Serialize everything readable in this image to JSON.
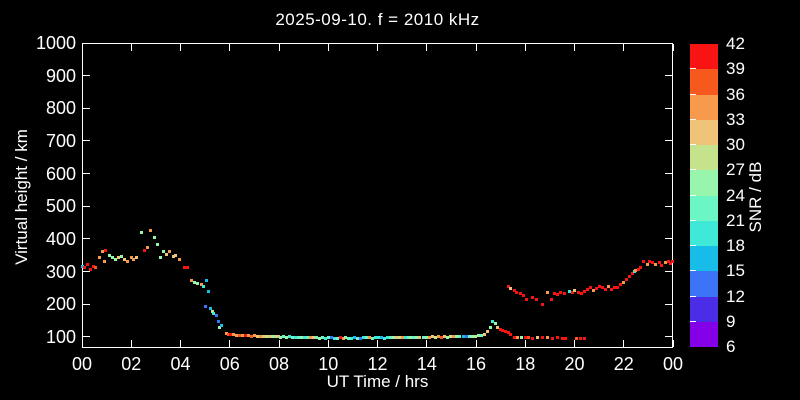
{
  "window": {
    "background": "#000000",
    "foreground": "#ffffff"
  },
  "chart_data": {
    "type": "scatter",
    "title": "2025-09-10. f = 2010 kHz",
    "xlabel": "UT Time / hrs",
    "ylabel": "Virtual height / km",
    "colorbar_label": "SNR / dB",
    "grid": false,
    "xlim": [
      0,
      24
    ],
    "ylim": [
      66,
      1000
    ],
    "x_ticks": [
      0,
      2,
      4,
      6,
      8,
      10,
      12,
      14,
      16,
      18,
      20,
      22,
      24
    ],
    "x_tick_labels": [
      "00",
      "02",
      "04",
      "06",
      "08",
      "10",
      "12",
      "14",
      "16",
      "18",
      "20",
      "22",
      "00"
    ],
    "y_ticks": [
      100,
      200,
      300,
      400,
      500,
      600,
      700,
      800,
      900,
      1000
    ],
    "y_tick_labels": [
      "100",
      "200",
      "300",
      "400",
      "500",
      "600",
      "700",
      "800",
      "900",
      "1000"
    ],
    "colorbar_ticks": [
      42,
      39,
      36,
      33,
      30,
      27,
      24,
      21,
      18,
      15,
      12,
      9,
      6
    ],
    "colormap_low_to_high": [
      "#8400e8",
      "#4b2de8",
      "#3b74f6",
      "#18bce8",
      "#3fe8d7",
      "#6cf6c6",
      "#98f5ac",
      "#c4e38c",
      "#efc478",
      "#f79a4c",
      "#f7581e",
      "#f81412"
    ],
    "colormap_bin_size": 3,
    "colormap_min": 6,
    "points_format": [
      "ut_hours",
      "virtual_height_km",
      "snr_db"
    ],
    "points": [
      [
        0.03,
        317,
        16
      ],
      [
        0.1,
        311,
        40
      ],
      [
        0.22,
        323,
        40
      ],
      [
        0.33,
        305,
        40
      ],
      [
        0.45,
        317,
        40
      ],
      [
        0.55,
        311,
        37
      ],
      [
        0.72,
        342,
        34
      ],
      [
        0.85,
        360,
        34
      ],
      [
        0.9,
        330,
        34
      ],
      [
        0.97,
        366,
        40
      ],
      [
        1.1,
        348,
        25
      ],
      [
        1.25,
        342,
        25
      ],
      [
        1.38,
        336,
        25
      ],
      [
        1.5,
        342,
        31
      ],
      [
        1.62,
        345,
        25
      ],
      [
        1.74,
        336,
        31
      ],
      [
        1.86,
        330,
        34
      ],
      [
        2.0,
        342,
        34
      ],
      [
        2.1,
        336,
        34
      ],
      [
        2.22,
        342,
        31
      ],
      [
        2.4,
        421,
        25
      ],
      [
        2.55,
        366,
        40
      ],
      [
        2.65,
        375,
        34
      ],
      [
        2.8,
        427,
        34
      ],
      [
        2.95,
        403,
        25
      ],
      [
        3.05,
        382,
        25
      ],
      [
        3.18,
        342,
        25
      ],
      [
        3.3,
        360,
        25
      ],
      [
        3.45,
        351,
        31
      ],
      [
        3.55,
        363,
        34
      ],
      [
        3.7,
        345,
        31
      ],
      [
        3.8,
        348,
        31
      ],
      [
        3.95,
        336,
        34
      ],
      [
        4.15,
        311,
        40
      ],
      [
        4.3,
        311,
        40
      ],
      [
        4.45,
        274,
        34
      ],
      [
        4.58,
        268,
        25
      ],
      [
        4.7,
        265,
        25
      ],
      [
        4.85,
        259,
        34
      ],
      [
        4.95,
        253,
        19
      ],
      [
        5.0,
        192,
        13
      ],
      [
        5.05,
        274,
        16
      ],
      [
        5.15,
        238,
        16
      ],
      [
        5.2,
        186,
        16
      ],
      [
        5.3,
        177,
        28
      ],
      [
        5.35,
        171,
        19
      ],
      [
        5.45,
        165,
        13
      ],
      [
        5.55,
        147,
        13
      ],
      [
        5.6,
        128,
        25
      ],
      [
        5.65,
        135,
        16
      ],
      [
        5.85,
        110,
        34
      ],
      [
        5.95,
        107,
        37
      ],
      [
        6.05,
        108,
        40
      ],
      [
        6.15,
        106,
        34
      ],
      [
        6.28,
        105,
        34
      ],
      [
        6.4,
        104,
        37
      ],
      [
        6.52,
        105,
        34
      ],
      [
        6.64,
        103,
        40
      ],
      [
        6.76,
        104,
        34
      ],
      [
        6.88,
        102,
        37
      ],
      [
        7.0,
        103,
        34
      ],
      [
        7.12,
        102,
        31
      ],
      [
        7.24,
        101,
        34
      ],
      [
        7.36,
        102,
        31
      ],
      [
        7.48,
        100,
        28
      ],
      [
        7.6,
        101,
        31
      ],
      [
        7.72,
        100,
        25
      ],
      [
        7.84,
        101,
        28
      ],
      [
        7.96,
        100,
        31
      ],
      [
        8.08,
        99,
        25
      ],
      [
        8.2,
        100,
        22
      ],
      [
        8.32,
        99,
        25
      ],
      [
        8.44,
        100,
        19
      ],
      [
        8.56,
        99,
        22
      ],
      [
        8.68,
        98,
        19
      ],
      [
        8.8,
        99,
        22
      ],
      [
        8.92,
        98,
        25
      ],
      [
        9.04,
        99,
        19
      ],
      [
        9.16,
        97,
        22
      ],
      [
        9.28,
        98,
        34
      ],
      [
        9.4,
        99,
        31
      ],
      [
        9.52,
        97,
        22
      ],
      [
        9.64,
        96,
        25
      ],
      [
        9.76,
        97,
        22
      ],
      [
        9.88,
        96,
        19
      ],
      [
        10.0,
        97,
        22
      ],
      [
        10.12,
        98,
        13
      ],
      [
        10.24,
        96,
        19
      ],
      [
        10.36,
        95,
        22
      ],
      [
        10.48,
        97,
        40
      ],
      [
        10.6,
        96,
        34
      ],
      [
        10.72,
        97,
        25
      ],
      [
        10.84,
        95,
        22
      ],
      [
        10.96,
        96,
        19
      ],
      [
        11.08,
        97,
        16
      ],
      [
        11.2,
        95,
        22
      ],
      [
        11.32,
        96,
        13
      ],
      [
        11.44,
        97,
        19
      ],
      [
        11.56,
        98,
        22
      ],
      [
        11.68,
        97,
        34
      ],
      [
        11.8,
        96,
        22
      ],
      [
        11.92,
        97,
        19
      ],
      [
        12.04,
        98,
        19
      ],
      [
        12.16,
        97,
        16
      ],
      [
        12.28,
        96,
        19
      ],
      [
        12.4,
        97,
        19
      ],
      [
        12.52,
        98,
        22
      ],
      [
        12.64,
        97,
        25
      ],
      [
        12.76,
        98,
        31
      ],
      [
        12.88,
        99,
        28
      ],
      [
        13.0,
        98,
        34
      ],
      [
        13.12,
        97,
        19
      ],
      [
        13.24,
        98,
        22
      ],
      [
        13.36,
        99,
        25
      ],
      [
        13.48,
        98,
        22
      ],
      [
        13.6,
        97,
        25
      ],
      [
        13.72,
        98,
        31
      ],
      [
        13.85,
        99,
        22
      ],
      [
        13.98,
        98,
        25
      ],
      [
        14.1,
        99,
        34
      ],
      [
        14.22,
        100,
        31
      ],
      [
        14.35,
        99,
        28
      ],
      [
        14.48,
        100,
        34
      ],
      [
        14.6,
        99,
        37
      ],
      [
        14.72,
        100,
        31
      ],
      [
        14.85,
        99,
        25
      ],
      [
        14.98,
        100,
        28
      ],
      [
        15.1,
        101,
        34
      ],
      [
        15.22,
        100,
        25
      ],
      [
        15.35,
        101,
        22
      ],
      [
        15.48,
        100,
        16
      ],
      [
        15.6,
        101,
        13
      ],
      [
        15.72,
        102,
        22
      ],
      [
        15.85,
        101,
        25
      ],
      [
        15.98,
        102,
        28
      ],
      [
        16.1,
        103,
        25
      ],
      [
        16.22,
        105,
        22
      ],
      [
        16.35,
        108,
        31
      ],
      [
        16.48,
        118,
        31
      ],
      [
        16.58,
        130,
        25
      ],
      [
        16.68,
        146,
        19
      ],
      [
        16.78,
        140,
        25
      ],
      [
        16.88,
        128,
        31
      ],
      [
        16.98,
        122,
        40
      ],
      [
        17.08,
        120,
        40
      ],
      [
        17.18,
        118,
        40
      ],
      [
        17.3,
        112,
        40
      ],
      [
        17.42,
        108,
        40
      ],
      [
        17.55,
        98,
        40
      ],
      [
        17.7,
        97,
        34
      ],
      [
        17.85,
        99,
        25
      ],
      [
        18.0,
        97,
        40
      ],
      [
        18.15,
        98,
        37
      ],
      [
        18.3,
        96,
        40
      ],
      [
        18.5,
        98,
        31
      ],
      [
        18.7,
        97,
        40
      ],
      [
        18.9,
        98,
        34
      ],
      [
        19.1,
        96,
        40
      ],
      [
        19.3,
        97,
        40
      ],
      [
        19.5,
        94,
        40
      ],
      [
        19.62,
        95,
        40
      ],
      [
        20.1,
        95,
        37
      ],
      [
        20.25,
        94,
        40
      ],
      [
        20.4,
        95,
        40
      ],
      [
        17.3,
        253,
        40
      ],
      [
        17.42,
        247,
        31
      ],
      [
        17.55,
        241,
        40
      ],
      [
        17.65,
        235,
        40
      ],
      [
        17.8,
        232,
        40
      ],
      [
        17.92,
        226,
        40
      ],
      [
        18.05,
        216,
        40
      ],
      [
        18.3,
        222,
        40
      ],
      [
        18.45,
        213,
        40
      ],
      [
        18.7,
        198,
        40
      ],
      [
        18.9,
        235,
        34
      ],
      [
        19.05,
        213,
        40
      ],
      [
        19.2,
        232,
        40
      ],
      [
        19.32,
        230,
        40
      ],
      [
        19.45,
        235,
        40
      ],
      [
        19.6,
        232,
        40
      ],
      [
        19.8,
        238,
        19
      ],
      [
        19.92,
        235,
        40
      ],
      [
        20.02,
        241,
        31
      ],
      [
        20.15,
        235,
        40
      ],
      [
        20.28,
        232,
        40
      ],
      [
        20.4,
        238,
        40
      ],
      [
        20.52,
        244,
        40
      ],
      [
        20.65,
        250,
        40
      ],
      [
        20.78,
        241,
        34
      ],
      [
        20.9,
        247,
        40
      ],
      [
        21.0,
        253,
        40
      ],
      [
        21.12,
        250,
        40
      ],
      [
        21.25,
        244,
        40
      ],
      [
        21.38,
        253,
        34
      ],
      [
        21.5,
        244,
        40
      ],
      [
        21.62,
        250,
        40
      ],
      [
        21.75,
        250,
        40
      ],
      [
        21.88,
        260,
        40
      ],
      [
        22.0,
        266,
        34
      ],
      [
        22.12,
        275,
        40
      ],
      [
        22.25,
        284,
        40
      ],
      [
        22.35,
        293,
        40
      ],
      [
        22.42,
        299,
        19
      ],
      [
        22.48,
        302,
        34
      ],
      [
        22.6,
        305,
        40
      ],
      [
        22.7,
        311,
        40
      ],
      [
        22.82,
        330,
        40
      ],
      [
        22.95,
        323,
        34
      ],
      [
        23.05,
        330,
        40
      ],
      [
        23.18,
        327,
        40
      ],
      [
        23.3,
        321,
        34
      ],
      [
        23.45,
        327,
        40
      ],
      [
        23.55,
        318,
        40
      ],
      [
        23.68,
        327,
        34
      ],
      [
        23.8,
        330,
        40
      ],
      [
        23.9,
        324,
        40
      ],
      [
        23.98,
        330,
        40
      ]
    ]
  }
}
